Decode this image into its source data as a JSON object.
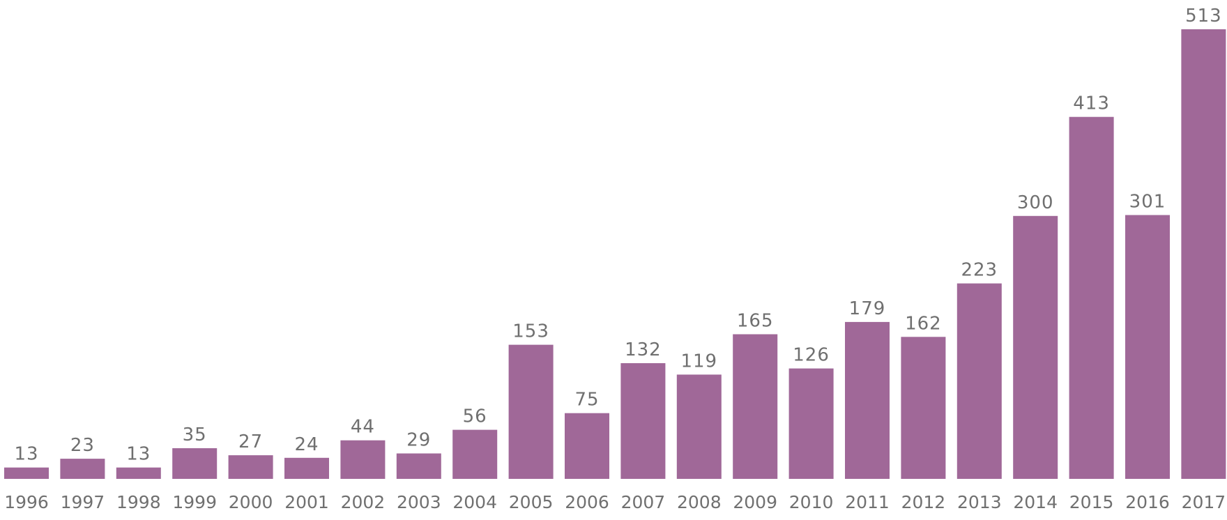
{
  "chart_data": {
    "type": "bar",
    "title": "",
    "xlabel": "",
    "ylabel": "",
    "categories": [
      "1996",
      "1997",
      "1998",
      "1999",
      "2000",
      "2001",
      "2002",
      "2003",
      "2004",
      "2005",
      "2006",
      "2007",
      "2008",
      "2009",
      "2010",
      "2011",
      "2012",
      "2013",
      "2014",
      "2015",
      "2016",
      "2017"
    ],
    "values": [
      13,
      23,
      13,
      35,
      27,
      24,
      44,
      29,
      56,
      153,
      75,
      132,
      119,
      165,
      126,
      179,
      162,
      223,
      300,
      413,
      301,
      513
    ],
    "ylim": [
      0,
      513
    ],
    "grid": false,
    "legend": "none"
  },
  "colors": {
    "bar": "#a06898",
    "value_text": "#6f6f6f",
    "tick_text": "#707070",
    "background": "#ffffff"
  }
}
